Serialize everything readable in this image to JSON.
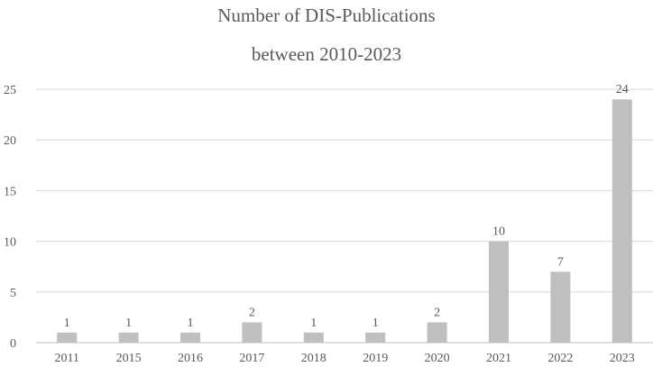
{
  "chart_data": {
    "type": "bar",
    "title_lines": [
      "Number of DIS-Publications",
      "between 2010-2023"
    ],
    "categories": [
      "2011",
      "2015",
      "2016",
      "2017",
      "2018",
      "2019",
      "2020",
      "2021",
      "2022",
      "2023"
    ],
    "values": [
      1,
      1,
      1,
      2,
      1,
      1,
      2,
      10,
      7,
      24
    ],
    "data_labels": [
      "1",
      "1",
      "1",
      "2",
      "1",
      "1",
      "2",
      "10",
      "7",
      "24"
    ],
    "y_ticks": [
      "0",
      "5",
      "10",
      "15",
      "20",
      "25"
    ],
    "ylim": [
      0,
      25
    ],
    "xlabel": "",
    "ylabel": "",
    "grid": true,
    "colors": {
      "bar": "#bfbfbf",
      "grid": "#d9d9d9",
      "axis": "#bfbfbf",
      "text": "#595959"
    }
  }
}
